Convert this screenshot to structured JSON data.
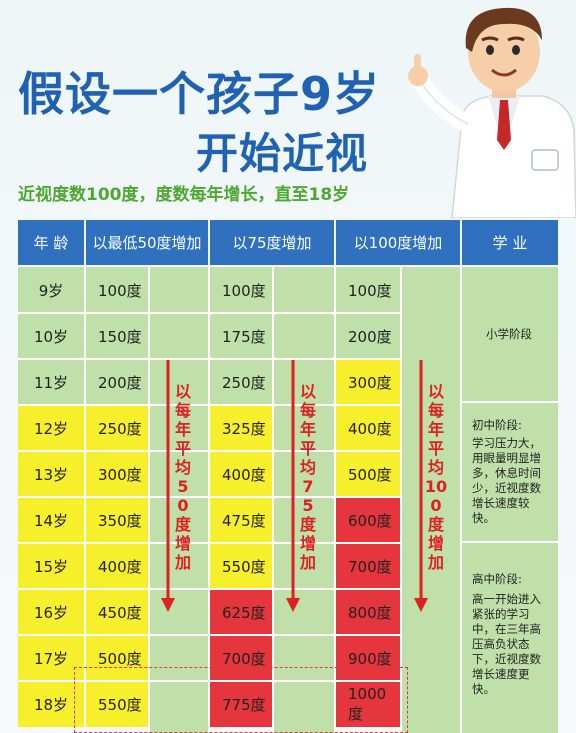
{
  "title": {
    "line1": "假设一个孩子9岁",
    "line2": "开始近视"
  },
  "subtitle": "近视度数100度，度数每年增长，直至18岁",
  "headers": [
    "年 龄",
    "以最低50度增加",
    "以75度增加",
    "以100度增加",
    "学 业"
  ],
  "ages": [
    "9岁",
    "10岁",
    "11岁",
    "12岁",
    "13岁",
    "14岁",
    "15岁",
    "16岁",
    "17岁",
    "18岁"
  ],
  "col50": [
    "100度",
    "150度",
    "200度",
    "250度",
    "300度",
    "350度",
    "400度",
    "450度",
    "500度",
    "550度"
  ],
  "col75": [
    "100度",
    "175度",
    "250度",
    "325度",
    "400度",
    "475度",
    "550度",
    "625度",
    "700度",
    "775度"
  ],
  "col100": [
    "100度",
    "200度",
    "300度",
    "400度",
    "500度",
    "600度",
    "700度",
    "800度",
    "900度",
    "1000度"
  ],
  "arrows": {
    "a50": "以每年平均50度增加",
    "a75": "以每年平均75度增加",
    "a100": "以每年平均100度增加"
  },
  "study": {
    "primary": "小学阶段",
    "junior_title": "初中阶段:",
    "junior_text": "学习压力大，用眼量明显增多，休息时间少，近视度数增长速度较快。",
    "senior_title": "高中阶段:",
    "senior_text": "高一开始进入紧张的学习中，在三年高压高负状态下，近视度数增长速度更快。"
  },
  "colors": {
    "header": "#2f70bf",
    "green": "#bfe0a8",
    "yellow": "#f7ef2b",
    "red": "#e5353d",
    "title": "#1f62b3",
    "subtitle": "#4da832",
    "arrow": "#e02020"
  }
}
